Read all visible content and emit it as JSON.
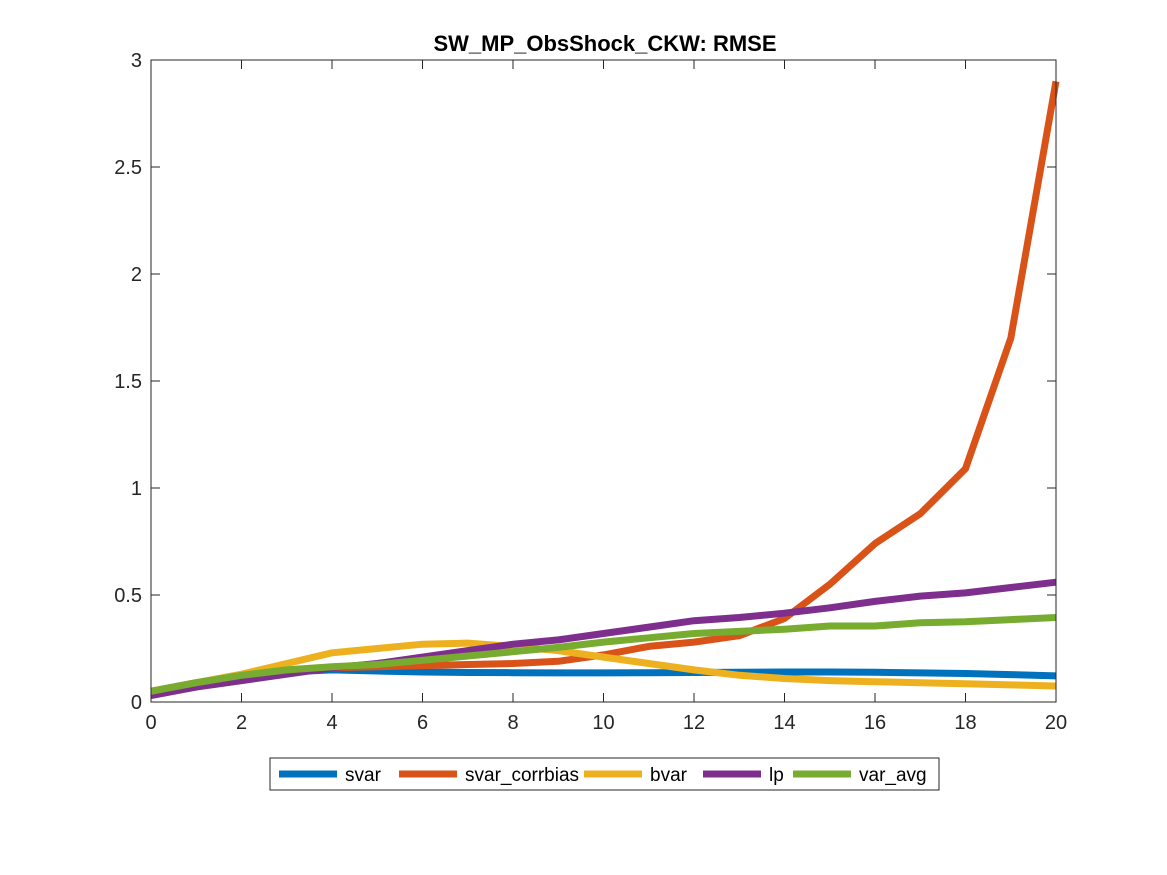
{
  "window": {
    "title": "SW_MP_ObsShock_CKW: RMSE"
  },
  "chart_data": {
    "type": "line",
    "title": "SW_MP_ObsShock_CKW: RMSE",
    "xlabel": "",
    "ylabel": "",
    "xlim": [
      0,
      20
    ],
    "ylim": [
      0,
      3
    ],
    "xticks": [
      0,
      2,
      4,
      6,
      8,
      10,
      12,
      14,
      16,
      18,
      20
    ],
    "yticks": [
      0,
      0.5,
      1,
      1.5,
      2,
      2.5,
      3
    ],
    "xtick_labels": [
      "0",
      "2",
      "4",
      "6",
      "8",
      "10",
      "12",
      "14",
      "16",
      "18",
      "20"
    ],
    "ytick_labels": [
      "0",
      "0.5",
      "1",
      "1.5",
      "2",
      "2.5",
      "3"
    ],
    "grid": false,
    "legend_position": "bottom-outside",
    "x": [
      0,
      1,
      2,
      3,
      4,
      5,
      6,
      7,
      8,
      9,
      10,
      11,
      12,
      13,
      14,
      15,
      16,
      17,
      18,
      19,
      20
    ],
    "series": [
      {
        "name": "svar",
        "color": "#0072BD",
        "values": [
          0.05,
          0.09,
          0.12,
          0.14,
          0.15,
          0.145,
          0.14,
          0.138,
          0.137,
          0.136,
          0.136,
          0.137,
          0.138,
          0.139,
          0.14,
          0.14,
          0.139,
          0.136,
          0.133,
          0.128,
          0.122
        ]
      },
      {
        "name": "svar_corrbias",
        "color": "#D95319",
        "values": [
          0.05,
          0.09,
          0.12,
          0.15,
          0.16,
          0.165,
          0.17,
          0.175,
          0.18,
          0.19,
          0.22,
          0.26,
          0.28,
          0.31,
          0.39,
          0.55,
          0.74,
          0.88,
          1.09,
          1.7,
          2.9
        ]
      },
      {
        "name": "bvar",
        "color": "#EDB120",
        "values": [
          0.05,
          0.09,
          0.13,
          0.18,
          0.23,
          0.25,
          0.27,
          0.275,
          0.26,
          0.24,
          0.21,
          0.18,
          0.15,
          0.125,
          0.11,
          0.1,
          0.095,
          0.09,
          0.085,
          0.08,
          0.075
        ]
      },
      {
        "name": "lp",
        "color": "#7E2F8E",
        "values": [
          0.03,
          0.07,
          0.1,
          0.13,
          0.16,
          0.18,
          0.21,
          0.24,
          0.27,
          0.29,
          0.32,
          0.35,
          0.38,
          0.395,
          0.415,
          0.44,
          0.47,
          0.495,
          0.51,
          0.535,
          0.56
        ]
      },
      {
        "name": "var_avg",
        "color": "#77AC30",
        "values": [
          0.05,
          0.09,
          0.125,
          0.15,
          0.165,
          0.175,
          0.195,
          0.215,
          0.235,
          0.255,
          0.28,
          0.3,
          0.32,
          0.33,
          0.34,
          0.355,
          0.355,
          0.37,
          0.375,
          0.385,
          0.395
        ]
      }
    ]
  }
}
